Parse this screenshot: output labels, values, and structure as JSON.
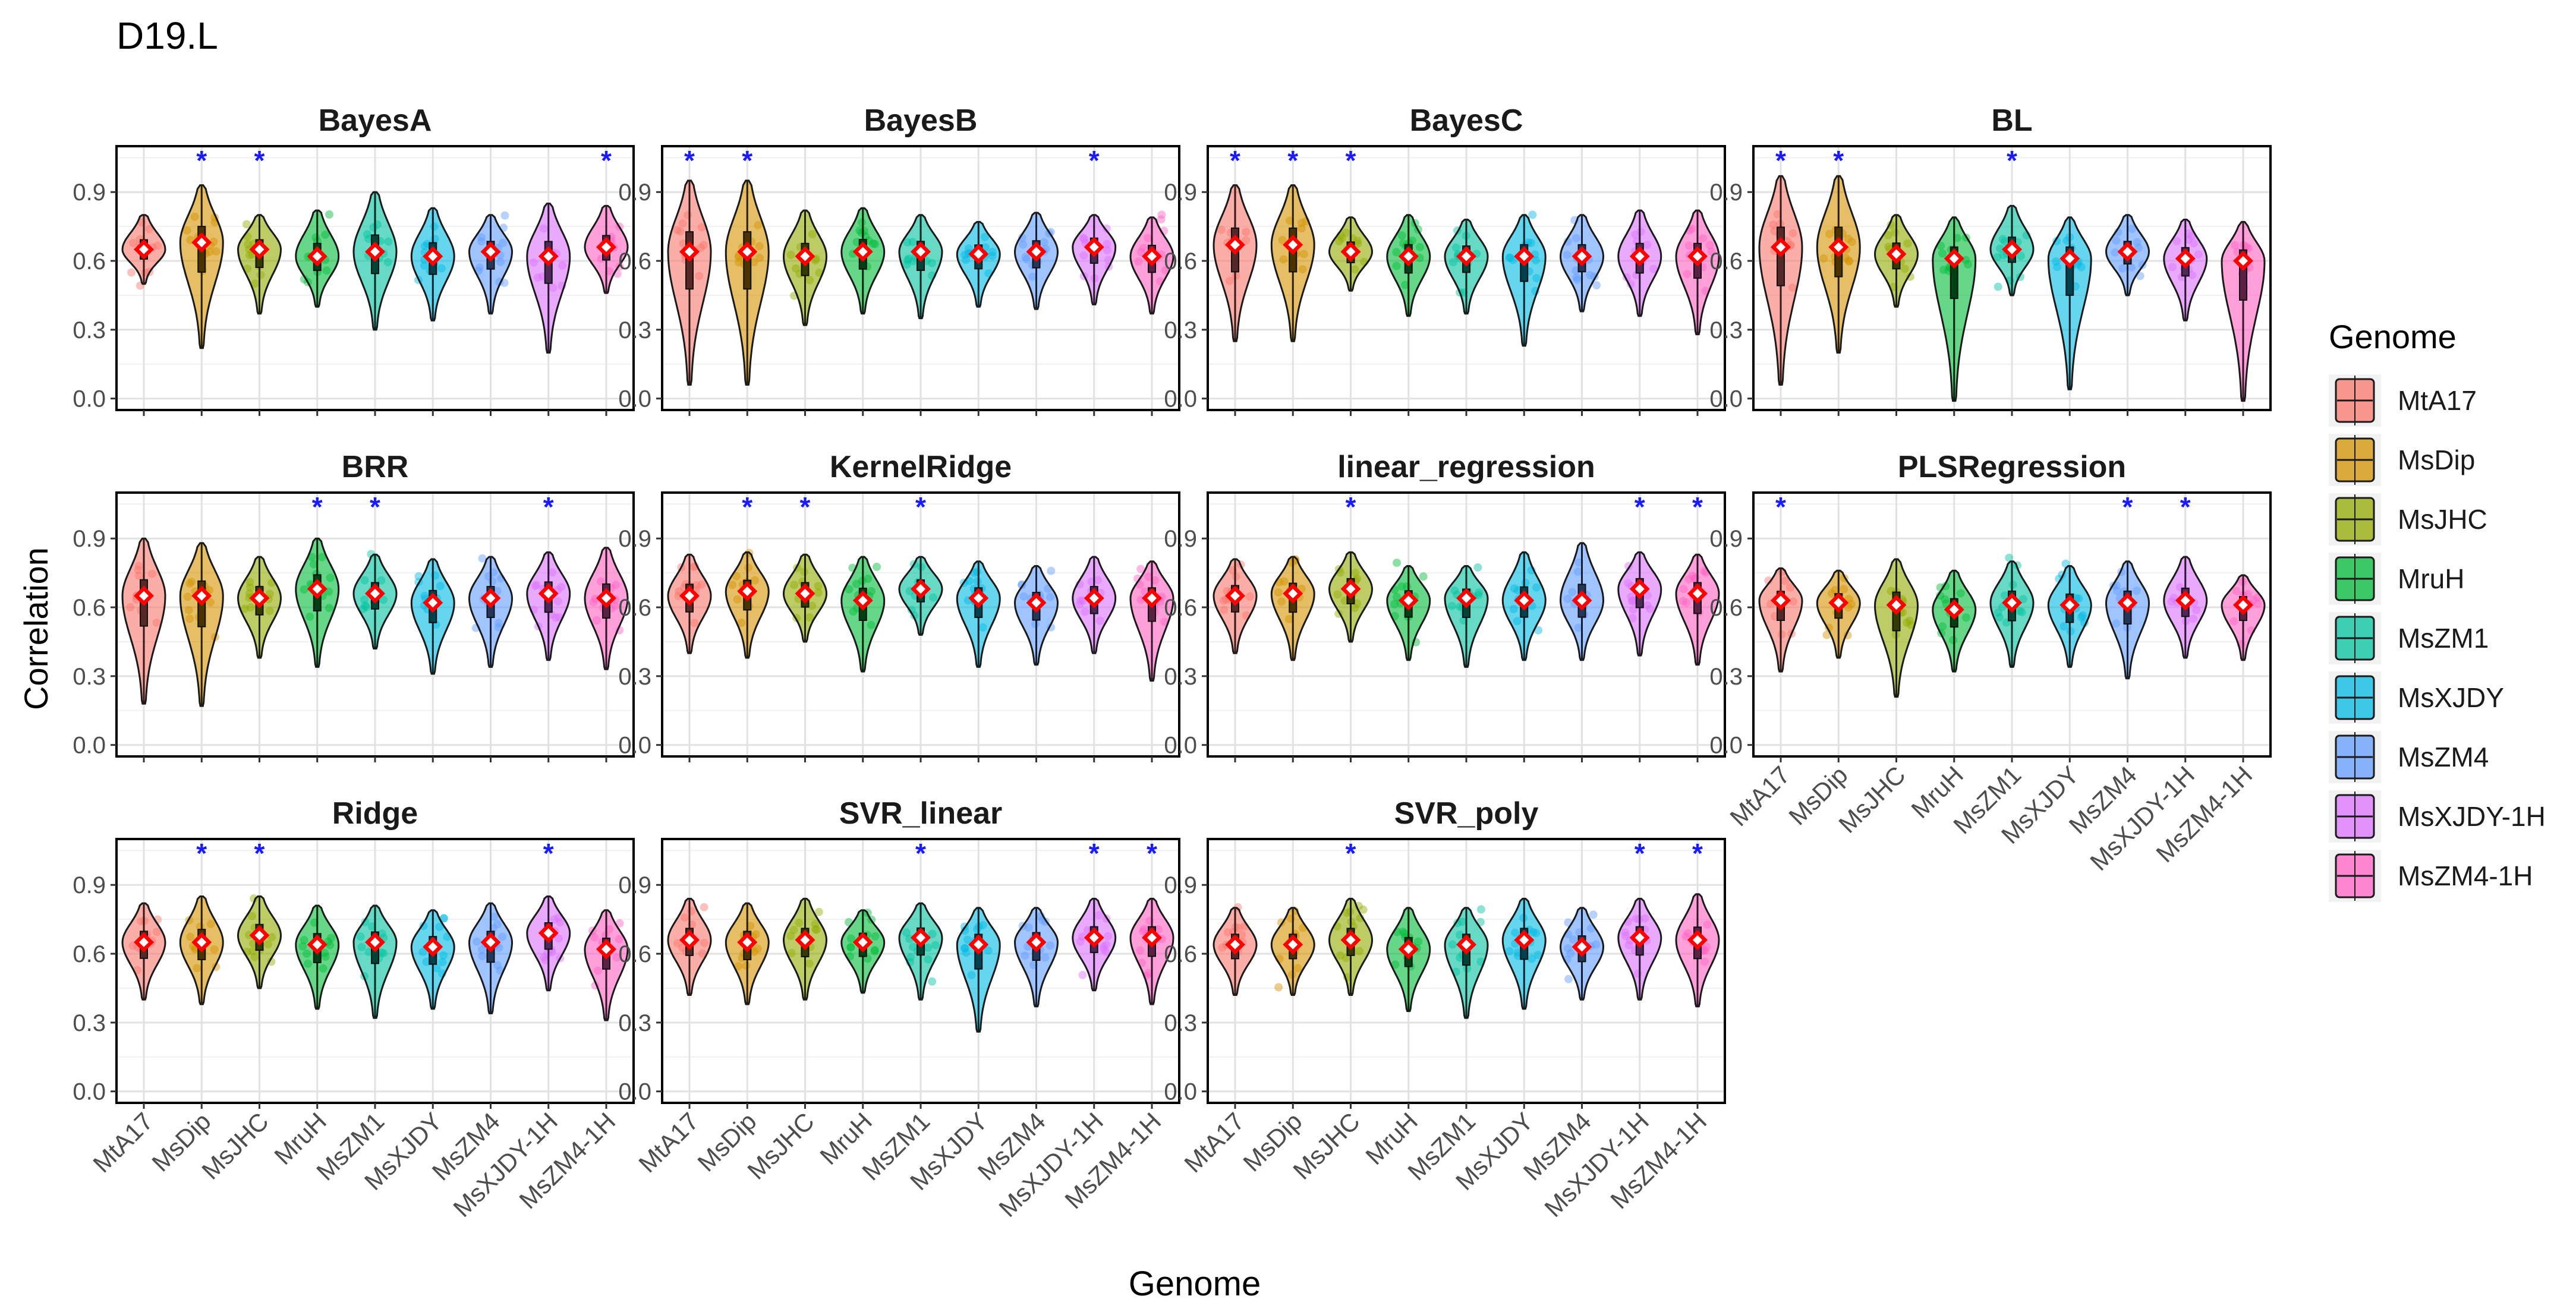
{
  "figure": {
    "title": "D19.L",
    "xlabel": "Genome",
    "ylabel": "Correlation",
    "legend": {
      "title": "Genome",
      "placement": "right"
    }
  },
  "chart_data": {
    "type": "violin",
    "title": "D19.L",
    "xlabel": "Genome",
    "ylabel": "Correlation",
    "ylim": [
      -0.05,
      1.1
    ],
    "yticks": [
      0.0,
      0.3,
      0.6,
      0.9
    ],
    "ytick_labels": [
      "0.0",
      "0.3",
      "0.6",
      "0.9"
    ],
    "grid": true,
    "legend_position": "right",
    "categories": [
      "MtA17",
      "MsDip",
      "MsJHC",
      "MruH",
      "MsZM1",
      "MsXJDY",
      "MsZM4",
      "MsXJDY-1H",
      "MsZM4-1H"
    ],
    "colors": [
      "#F8766D",
      "#D39200",
      "#93AA00",
      "#00BA38",
      "#00C19F",
      "#00B9E3",
      "#619CFF",
      "#DB72FB",
      "#FF61C3"
    ],
    "significance_marker": "*",
    "significance_color": "#1a1aff",
    "mean_marker_color": "#ff0000",
    "panels": [
      {
        "name": "BayesA",
        "means": [
          0.65,
          0.68,
          0.65,
          0.62,
          0.64,
          0.62,
          0.64,
          0.62,
          0.66
        ],
        "min": [
          0.5,
          0.22,
          0.37,
          0.4,
          0.3,
          0.34,
          0.37,
          0.2,
          0.46
        ],
        "max": [
          0.8,
          0.93,
          0.8,
          0.82,
          0.9,
          0.83,
          0.8,
          0.85,
          0.84
        ],
        "significant": [
          "MsDip",
          "MsJHC",
          "MsZM4-1H"
        ]
      },
      {
        "name": "BayesB",
        "means": [
          0.64,
          0.64,
          0.62,
          0.64,
          0.64,
          0.63,
          0.64,
          0.66,
          0.62
        ],
        "min": [
          0.06,
          0.06,
          0.32,
          0.37,
          0.35,
          0.4,
          0.39,
          0.41,
          0.37
        ],
        "max": [
          0.95,
          0.95,
          0.82,
          0.83,
          0.8,
          0.77,
          0.81,
          0.8,
          0.79
        ],
        "significant": [
          "MtA17",
          "MsDip",
          "MsXJDY-1H"
        ]
      },
      {
        "name": "BayesC",
        "means": [
          0.67,
          0.67,
          0.64,
          0.62,
          0.62,
          0.62,
          0.62,
          0.62,
          0.62
        ],
        "min": [
          0.25,
          0.25,
          0.47,
          0.36,
          0.37,
          0.23,
          0.38,
          0.36,
          0.28
        ],
        "max": [
          0.93,
          0.93,
          0.79,
          0.8,
          0.78,
          0.8,
          0.8,
          0.82,
          0.82
        ],
        "significant": [
          "MtA17",
          "MsDip",
          "MsJHC"
        ]
      },
      {
        "name": "BL",
        "means": [
          0.66,
          0.66,
          0.63,
          0.61,
          0.65,
          0.61,
          0.64,
          0.61,
          0.6
        ],
        "min": [
          0.06,
          0.2,
          0.4,
          -0.01,
          0.45,
          0.04,
          0.45,
          0.34,
          -0.01
        ],
        "max": [
          0.97,
          0.97,
          0.8,
          0.79,
          0.84,
          0.79,
          0.8,
          0.78,
          0.77
        ],
        "significant": [
          "MtA17",
          "MsDip",
          "MsZM1"
        ]
      },
      {
        "name": "BRR",
        "means": [
          0.65,
          0.65,
          0.64,
          0.68,
          0.66,
          0.62,
          0.64,
          0.66,
          0.64
        ],
        "min": [
          0.18,
          0.17,
          0.38,
          0.34,
          0.42,
          0.31,
          0.34,
          0.37,
          0.33
        ],
        "max": [
          0.9,
          0.88,
          0.82,
          0.9,
          0.83,
          0.81,
          0.82,
          0.84,
          0.86
        ],
        "significant": [
          "MruH",
          "MsZM1",
          "MsXJDY-1H"
        ]
      },
      {
        "name": "KernelRidge",
        "means": [
          0.65,
          0.67,
          0.66,
          0.63,
          0.68,
          0.64,
          0.62,
          0.64,
          0.64
        ],
        "min": [
          0.4,
          0.38,
          0.45,
          0.32,
          0.48,
          0.34,
          0.35,
          0.4,
          0.28
        ],
        "max": [
          0.83,
          0.84,
          0.83,
          0.82,
          0.82,
          0.8,
          0.78,
          0.82,
          0.8
        ],
        "significant": [
          "MsDip",
          "MsJHC",
          "MsZM1"
        ]
      },
      {
        "name": "linear_regression",
        "means": [
          0.65,
          0.66,
          0.68,
          0.63,
          0.64,
          0.63,
          0.63,
          0.68,
          0.66
        ],
        "min": [
          0.4,
          0.37,
          0.45,
          0.37,
          0.34,
          0.37,
          0.37,
          0.39,
          0.35
        ],
        "max": [
          0.81,
          0.82,
          0.84,
          0.78,
          0.78,
          0.84,
          0.88,
          0.84,
          0.83
        ],
        "significant": [
          "MsJHC",
          "MsXJDY-1H",
          "MsZM4-1H"
        ]
      },
      {
        "name": "PLSRegression",
        "means": [
          0.63,
          0.62,
          0.61,
          0.59,
          0.62,
          0.61,
          0.62,
          0.63,
          0.61
        ],
        "min": [
          0.32,
          0.38,
          0.21,
          0.32,
          0.34,
          0.34,
          0.29,
          0.38,
          0.37
        ],
        "max": [
          0.77,
          0.76,
          0.81,
          0.76,
          0.8,
          0.78,
          0.8,
          0.82,
          0.74
        ],
        "significant": [
          "MtA17",
          "MsZM4",
          "MsXJDY-1H"
        ]
      },
      {
        "name": "Ridge",
        "means": [
          0.65,
          0.65,
          0.68,
          0.64,
          0.65,
          0.63,
          0.65,
          0.69,
          0.62
        ],
        "min": [
          0.4,
          0.38,
          0.45,
          0.36,
          0.32,
          0.36,
          0.34,
          0.44,
          0.31
        ],
        "max": [
          0.82,
          0.85,
          0.85,
          0.81,
          0.81,
          0.79,
          0.82,
          0.85,
          0.79
        ],
        "significant": [
          "MsDip",
          "MsJHC",
          "MsXJDY-1H"
        ]
      },
      {
        "name": "SVR_linear",
        "means": [
          0.66,
          0.65,
          0.66,
          0.65,
          0.67,
          0.64,
          0.65,
          0.67,
          0.67
        ],
        "min": [
          0.42,
          0.38,
          0.4,
          0.43,
          0.4,
          0.26,
          0.37,
          0.44,
          0.38
        ],
        "max": [
          0.84,
          0.82,
          0.84,
          0.79,
          0.82,
          0.8,
          0.8,
          0.84,
          0.84
        ],
        "significant": [
          "MsZM1",
          "MsXJDY-1H",
          "MsZM4-1H"
        ]
      },
      {
        "name": "SVR_poly",
        "means": [
          0.64,
          0.64,
          0.66,
          0.62,
          0.64,
          0.66,
          0.63,
          0.67,
          0.66
        ],
        "min": [
          0.42,
          0.42,
          0.42,
          0.35,
          0.32,
          0.36,
          0.4,
          0.4,
          0.37
        ],
        "max": [
          0.8,
          0.8,
          0.84,
          0.8,
          0.8,
          0.84,
          0.8,
          0.84,
          0.86
        ],
        "significant": [
          "MsJHC",
          "MsXJDY-1H",
          "MsZM4-1H"
        ]
      }
    ]
  }
}
